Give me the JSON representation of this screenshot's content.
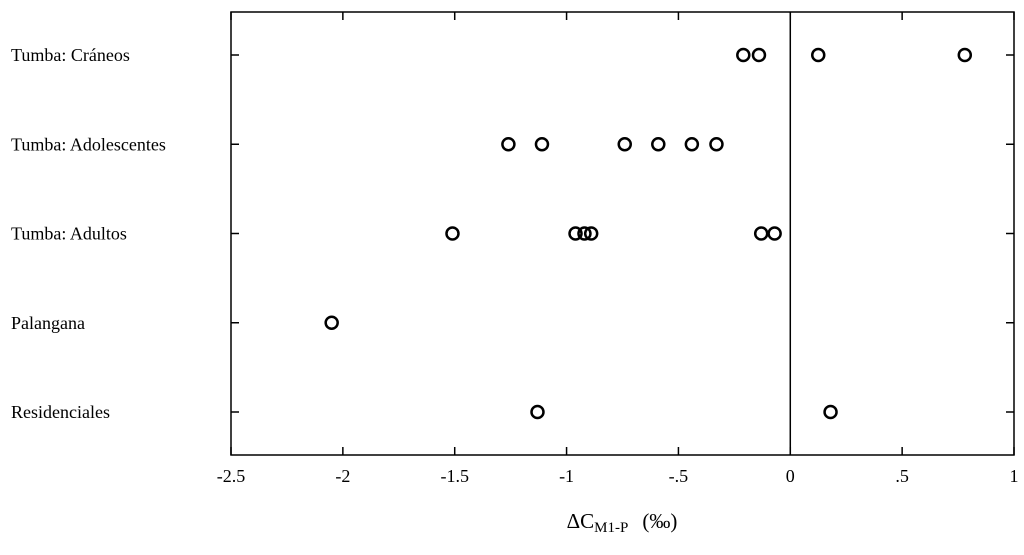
{
  "chart_data": {
    "type": "dot",
    "categories": [
      "Tumba: Cráneos",
      "Tumba: Adolescentes",
      "Tumba: Adultos",
      "Palangana",
      "Residenciales"
    ],
    "values": [
      [
        -0.21,
        -0.14,
        0.125,
        0.78
      ],
      [
        -1.26,
        -1.11,
        -0.74,
        -0.59,
        -0.44,
        -0.33
      ],
      [
        -1.51,
        -0.96,
        -0.92,
        -0.89,
        -0.13,
        -0.07
      ],
      [
        -2.05
      ],
      [
        -1.13,
        0.18
      ]
    ],
    "xlim": [
      -2.5,
      1
    ],
    "xticks": [
      -2.5,
      -2,
      -1.5,
      -1,
      {
        "value": -0.5,
        "label": "-.5"
      },
      0,
      {
        "value": 0.5,
        "label": ".5"
      },
      1
    ],
    "reference_line": 0,
    "xlabel": {
      "main": "ΔC",
      "sub": "M1-P",
      "unit": "(‰)"
    },
    "color": "#000000"
  }
}
